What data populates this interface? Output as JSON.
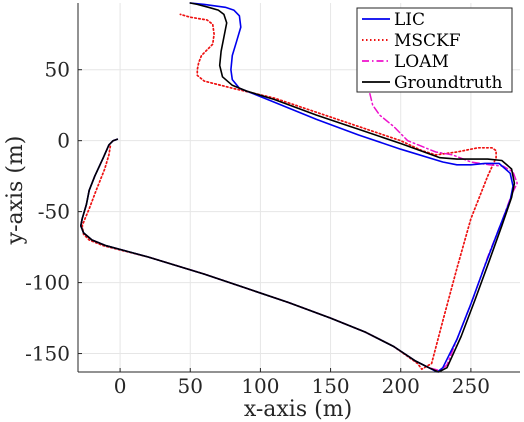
{
  "chart_data": {
    "type": "line",
    "title": "",
    "xlabel": "x-axis (m)",
    "ylabel": "y-axis (m)",
    "xlim": [
      -30,
      285
    ],
    "ylim": [
      -163,
      97
    ],
    "xticks": [
      0,
      50,
      100,
      150,
      200,
      250
    ],
    "yticks": [
      50,
      0,
      -50,
      -100,
      -150
    ],
    "xtick_labels": [
      "0",
      "50",
      "100",
      "150",
      "200",
      "250"
    ],
    "ytick_labels": [
      "50",
      "0",
      "-50",
      "-100",
      "-150"
    ],
    "grid": true,
    "legend_position": "top-right",
    "colors": {
      "lic": "#0000ee",
      "msckf": "#ee1111",
      "loam": "#ee11cc",
      "groundtruth": "#000000",
      "grid": "#e6e6e6",
      "axis": "#262626"
    },
    "series": [
      {
        "name": "LIC",
        "style": "solid",
        "x": [
          -2,
          -5,
          -8,
          -12,
          -18,
          -22,
          -24,
          -27,
          -28,
          -26,
          -20,
          -10,
          20,
          60,
          90,
          120,
          150,
          175,
          195,
          210,
          220,
          226,
          230,
          240,
          250,
          260,
          270,
          278,
          280,
          278,
          270,
          260,
          250,
          240,
          230,
          200,
          170,
          140,
          110,
          95,
          85,
          80,
          79,
          80,
          83,
          86,
          85,
          81,
          75,
          60,
          50
        ],
        "y": [
          1,
          0,
          -3,
          -12,
          -25,
          -35,
          -45,
          -55,
          -60,
          -65,
          -70,
          -74,
          -82,
          -94,
          -104,
          -114,
          -125,
          -135,
          -145,
          -155,
          -160,
          -163,
          -160,
          -140,
          -115,
          -88,
          -62,
          -42,
          -32,
          -23,
          -16,
          -16,
          -17,
          -17,
          -15,
          -6,
          4,
          15,
          27,
          33,
          37,
          43,
          50,
          60,
          70,
          80,
          88,
          92,
          94,
          96,
          97
        ]
      },
      {
        "name": "MSCKF",
        "style": "dotted",
        "x": [
          -7,
          -8,
          -11,
          -17,
          -22,
          -25,
          -27,
          -26,
          -22,
          -12,
          20,
          60,
          90,
          120,
          150,
          175,
          195,
          212,
          215,
          222,
          230,
          240,
          250,
          262,
          268,
          268,
          265,
          255,
          240,
          225,
          215,
          200,
          170,
          140,
          110,
          80,
          60,
          55,
          55,
          56,
          58,
          66,
          67,
          66,
          62,
          50,
          43
        ],
        "y": [
          -4,
          -10,
          -20,
          -35,
          -48,
          -55,
          -60,
          -66,
          -70,
          -74,
          -82,
          -94,
          -104,
          -114,
          -125,
          -135,
          -145,
          -157,
          -161,
          -157,
          -127,
          -90,
          -55,
          -25,
          -12,
          -7,
          -5,
          -5,
          -8,
          -10,
          -7,
          0,
          10,
          20,
          30,
          37,
          42,
          46,
          50,
          55,
          60,
          68,
          75,
          82,
          85,
          87,
          89
        ]
      },
      {
        "name": "LOAM",
        "style": "dashdot",
        "x": [
          -2,
          -5,
          -8,
          -12,
          -18,
          -22,
          -24,
          -27,
          -28,
          -26,
          -20,
          -10,
          20,
          60,
          90,
          120,
          150,
          175,
          195,
          210,
          220,
          228,
          233,
          242,
          252,
          262,
          272,
          279,
          283,
          280,
          273,
          263,
          250,
          237,
          225,
          205,
          195,
          185,
          180,
          178,
          178
        ],
        "y": [
          1,
          0,
          -3,
          -12,
          -25,
          -35,
          -45,
          -55,
          -60,
          -65,
          -70,
          -74,
          -82,
          -94,
          -104,
          -114,
          -125,
          -135,
          -145,
          -155,
          -160,
          -162,
          -158,
          -135,
          -110,
          -82,
          -57,
          -38,
          -30,
          -22,
          -18,
          -17,
          -15,
          -10,
          -8,
          0,
          10,
          18,
          25,
          33,
          38
        ]
      },
      {
        "name": "Groundtruth",
        "style": "solid",
        "x": [
          -2,
          -5,
          -8,
          -12,
          -18,
          -22,
          -24,
          -27,
          -28,
          -26,
          -20,
          -10,
          20,
          60,
          90,
          120,
          150,
          175,
          195,
          210,
          220,
          227,
          233,
          243,
          253,
          263,
          272,
          279,
          281,
          279,
          272,
          262,
          252,
          240,
          228,
          200,
          170,
          140,
          110,
          90,
          80,
          73,
          71,
          72,
          74,
          76,
          74,
          70,
          63,
          55,
          50
        ],
        "y": [
          1,
          0,
          -3,
          -12,
          -25,
          -35,
          -45,
          -55,
          -60,
          -65,
          -70,
          -74,
          -82,
          -94,
          -104,
          -114,
          -125,
          -135,
          -145,
          -155,
          -160,
          -163,
          -160,
          -138,
          -112,
          -85,
          -60,
          -40,
          -30,
          -20,
          -14,
          -13,
          -13,
          -13,
          -12,
          -2,
          8,
          18,
          29,
          35,
          39,
          45,
          53,
          63,
          73,
          83,
          89,
          92,
          94,
          96,
          97
        ]
      }
    ]
  }
}
